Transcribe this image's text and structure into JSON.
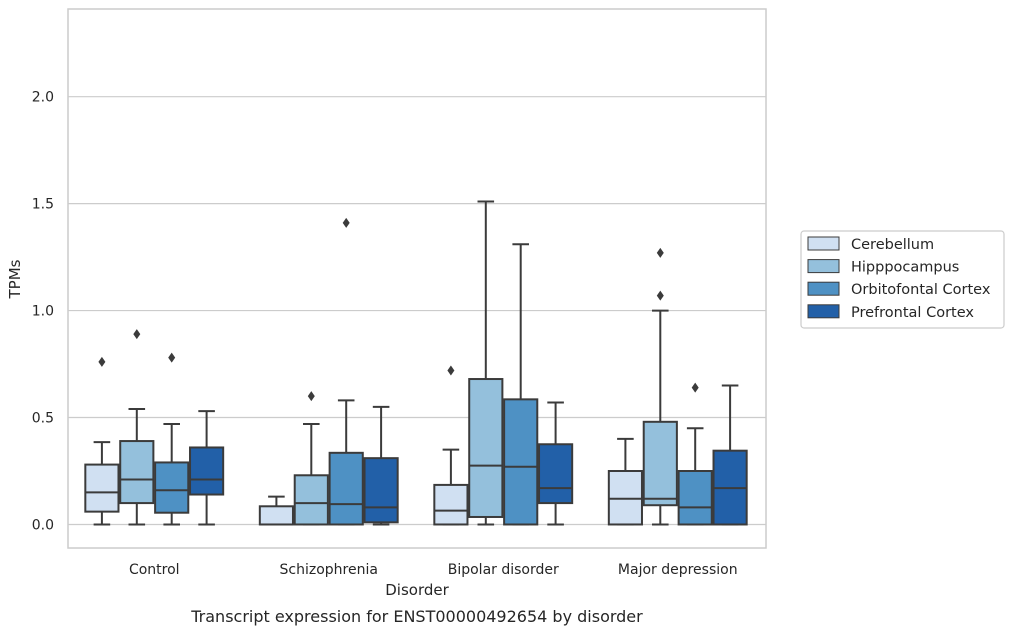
{
  "chart_data": {
    "type": "box",
    "title": "",
    "caption": "Transcript expression for ENST00000492654 by disorder",
    "xlabel": "Disorder",
    "ylabel": "TPMs",
    "ylim": [
      -0.11,
      2.41
    ],
    "yticks": [
      0.0,
      0.5,
      1.0,
      1.5,
      2.0
    ],
    "ytick_labels": [
      "0.0",
      "0.5",
      "1.0",
      "1.5",
      "2.0"
    ],
    "grid": "horizontal",
    "legend_position": "right",
    "categories": [
      "Control",
      "Schizophrenia",
      "Bipolar disorder",
      "Major depression"
    ],
    "series": [
      {
        "name": "Cerebellum",
        "color": "#d0e0f2",
        "boxes": [
          {
            "whisker_low": 0.0,
            "q1": 0.06,
            "median": 0.15,
            "q3": 0.28,
            "whisker_high": 0.385,
            "outliers": [
              0.76
            ]
          },
          {
            "whisker_low": 0.0,
            "q1": 0.0,
            "median": 0.0,
            "q3": 0.085,
            "whisker_high": 0.13,
            "outliers": []
          },
          {
            "whisker_low": 0.0,
            "q1": 0.0,
            "median": 0.065,
            "q3": 0.185,
            "whisker_high": 0.35,
            "outliers": [
              0.72
            ]
          },
          {
            "whisker_low": 0.0,
            "q1": 0.0,
            "median": 0.12,
            "q3": 0.25,
            "whisker_high": 0.4,
            "outliers": []
          }
        ]
      },
      {
        "name": "Hipppocampus",
        "color": "#94c0dc",
        "boxes": [
          {
            "whisker_low": 0.0,
            "q1": 0.1,
            "median": 0.21,
            "q3": 0.39,
            "whisker_high": 0.54,
            "outliers": [
              0.89
            ]
          },
          {
            "whisker_low": 0.0,
            "q1": 0.0,
            "median": 0.1,
            "q3": 0.23,
            "whisker_high": 0.47,
            "outliers": [
              0.6
            ]
          },
          {
            "whisker_low": 0.0,
            "q1": 0.035,
            "median": 0.275,
            "q3": 0.68,
            "whisker_high": 1.51,
            "outliers": []
          },
          {
            "whisker_low": 0.0,
            "q1": 0.09,
            "median": 0.12,
            "q3": 0.48,
            "whisker_high": 1.0,
            "outliers": [
              1.07,
              1.27
            ]
          }
        ]
      },
      {
        "name": "Orbitofontal Cortex",
        "color": "#4e91c4",
        "boxes": [
          {
            "whisker_low": 0.0,
            "q1": 0.055,
            "median": 0.16,
            "q3": 0.29,
            "whisker_high": 0.47,
            "outliers": [
              0.78
            ]
          },
          {
            "whisker_low": 0.0,
            "q1": 0.0,
            "median": 0.095,
            "q3": 0.335,
            "whisker_high": 0.58,
            "outliers": [
              1.41
            ]
          },
          {
            "whisker_low": 0.0,
            "q1": 0.0,
            "median": 0.27,
            "q3": 0.585,
            "whisker_high": 1.31,
            "outliers": []
          },
          {
            "whisker_low": 0.0,
            "q1": 0.0,
            "median": 0.08,
            "q3": 0.25,
            "whisker_high": 0.45,
            "outliers": [
              0.64
            ]
          }
        ]
      },
      {
        "name": "Prefrontal Cortex",
        "color": "#2260a8",
        "boxes": [
          {
            "whisker_low": 0.0,
            "q1": 0.14,
            "median": 0.21,
            "q3": 0.36,
            "whisker_high": 0.53,
            "outliers": []
          },
          {
            "whisker_low": 0.0,
            "q1": 0.01,
            "median": 0.08,
            "q3": 0.31,
            "whisker_high": 0.55,
            "outliers": []
          },
          {
            "whisker_low": 0.0,
            "q1": 0.1,
            "median": 0.17,
            "q3": 0.375,
            "whisker_high": 0.57,
            "outliers": []
          },
          {
            "whisker_low": 0.0,
            "q1": 0.0,
            "median": 0.17,
            "q3": 0.345,
            "whisker_high": 0.65,
            "outliers": []
          }
        ]
      }
    ]
  }
}
